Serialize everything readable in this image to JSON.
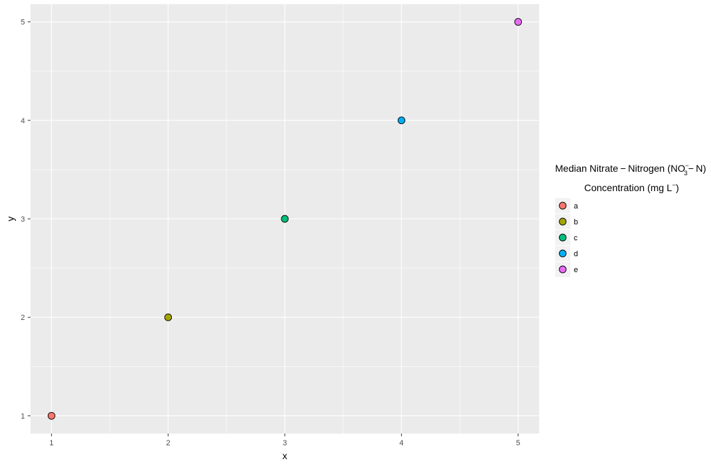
{
  "chart_data": {
    "type": "scatter",
    "xlabel": "x",
    "ylabel": "y",
    "xlim": [
      0.82,
      5.18
    ],
    "ylim": [
      0.82,
      5.18
    ],
    "x_ticks": [
      "1",
      "2",
      "3",
      "4",
      "5"
    ],
    "y_ticks": [
      "1",
      "2",
      "3",
      "4",
      "5"
    ],
    "grid": true,
    "legend_position": "right",
    "legend_title": {
      "line1": {
        "prefix": "Median Nitrate",
        "minus1": "−",
        "middle": "Nitrogen (NO",
        "sup": "−",
        "sub": "3",
        "minus2": "−",
        "suffix": "N)"
      },
      "line2": {
        "prefix": "Concentration (mg L",
        "sup": "−",
        "suffix": ")"
      }
    },
    "series": [
      {
        "name": "a",
        "x": 1,
        "y": 1,
        "color": "#F8766D"
      },
      {
        "name": "b",
        "x": 2,
        "y": 2,
        "color": "#A3A500"
      },
      {
        "name": "c",
        "x": 3,
        "y": 3,
        "color": "#00BF7D"
      },
      {
        "name": "d",
        "x": 4,
        "y": 4,
        "color": "#00B0F6"
      },
      {
        "name": "e",
        "x": 5,
        "y": 5,
        "color": "#E76BF3"
      }
    ],
    "panel_background": "#EBEBEB",
    "grid_color": "#FFFFFF",
    "point_stroke": "#000000"
  }
}
